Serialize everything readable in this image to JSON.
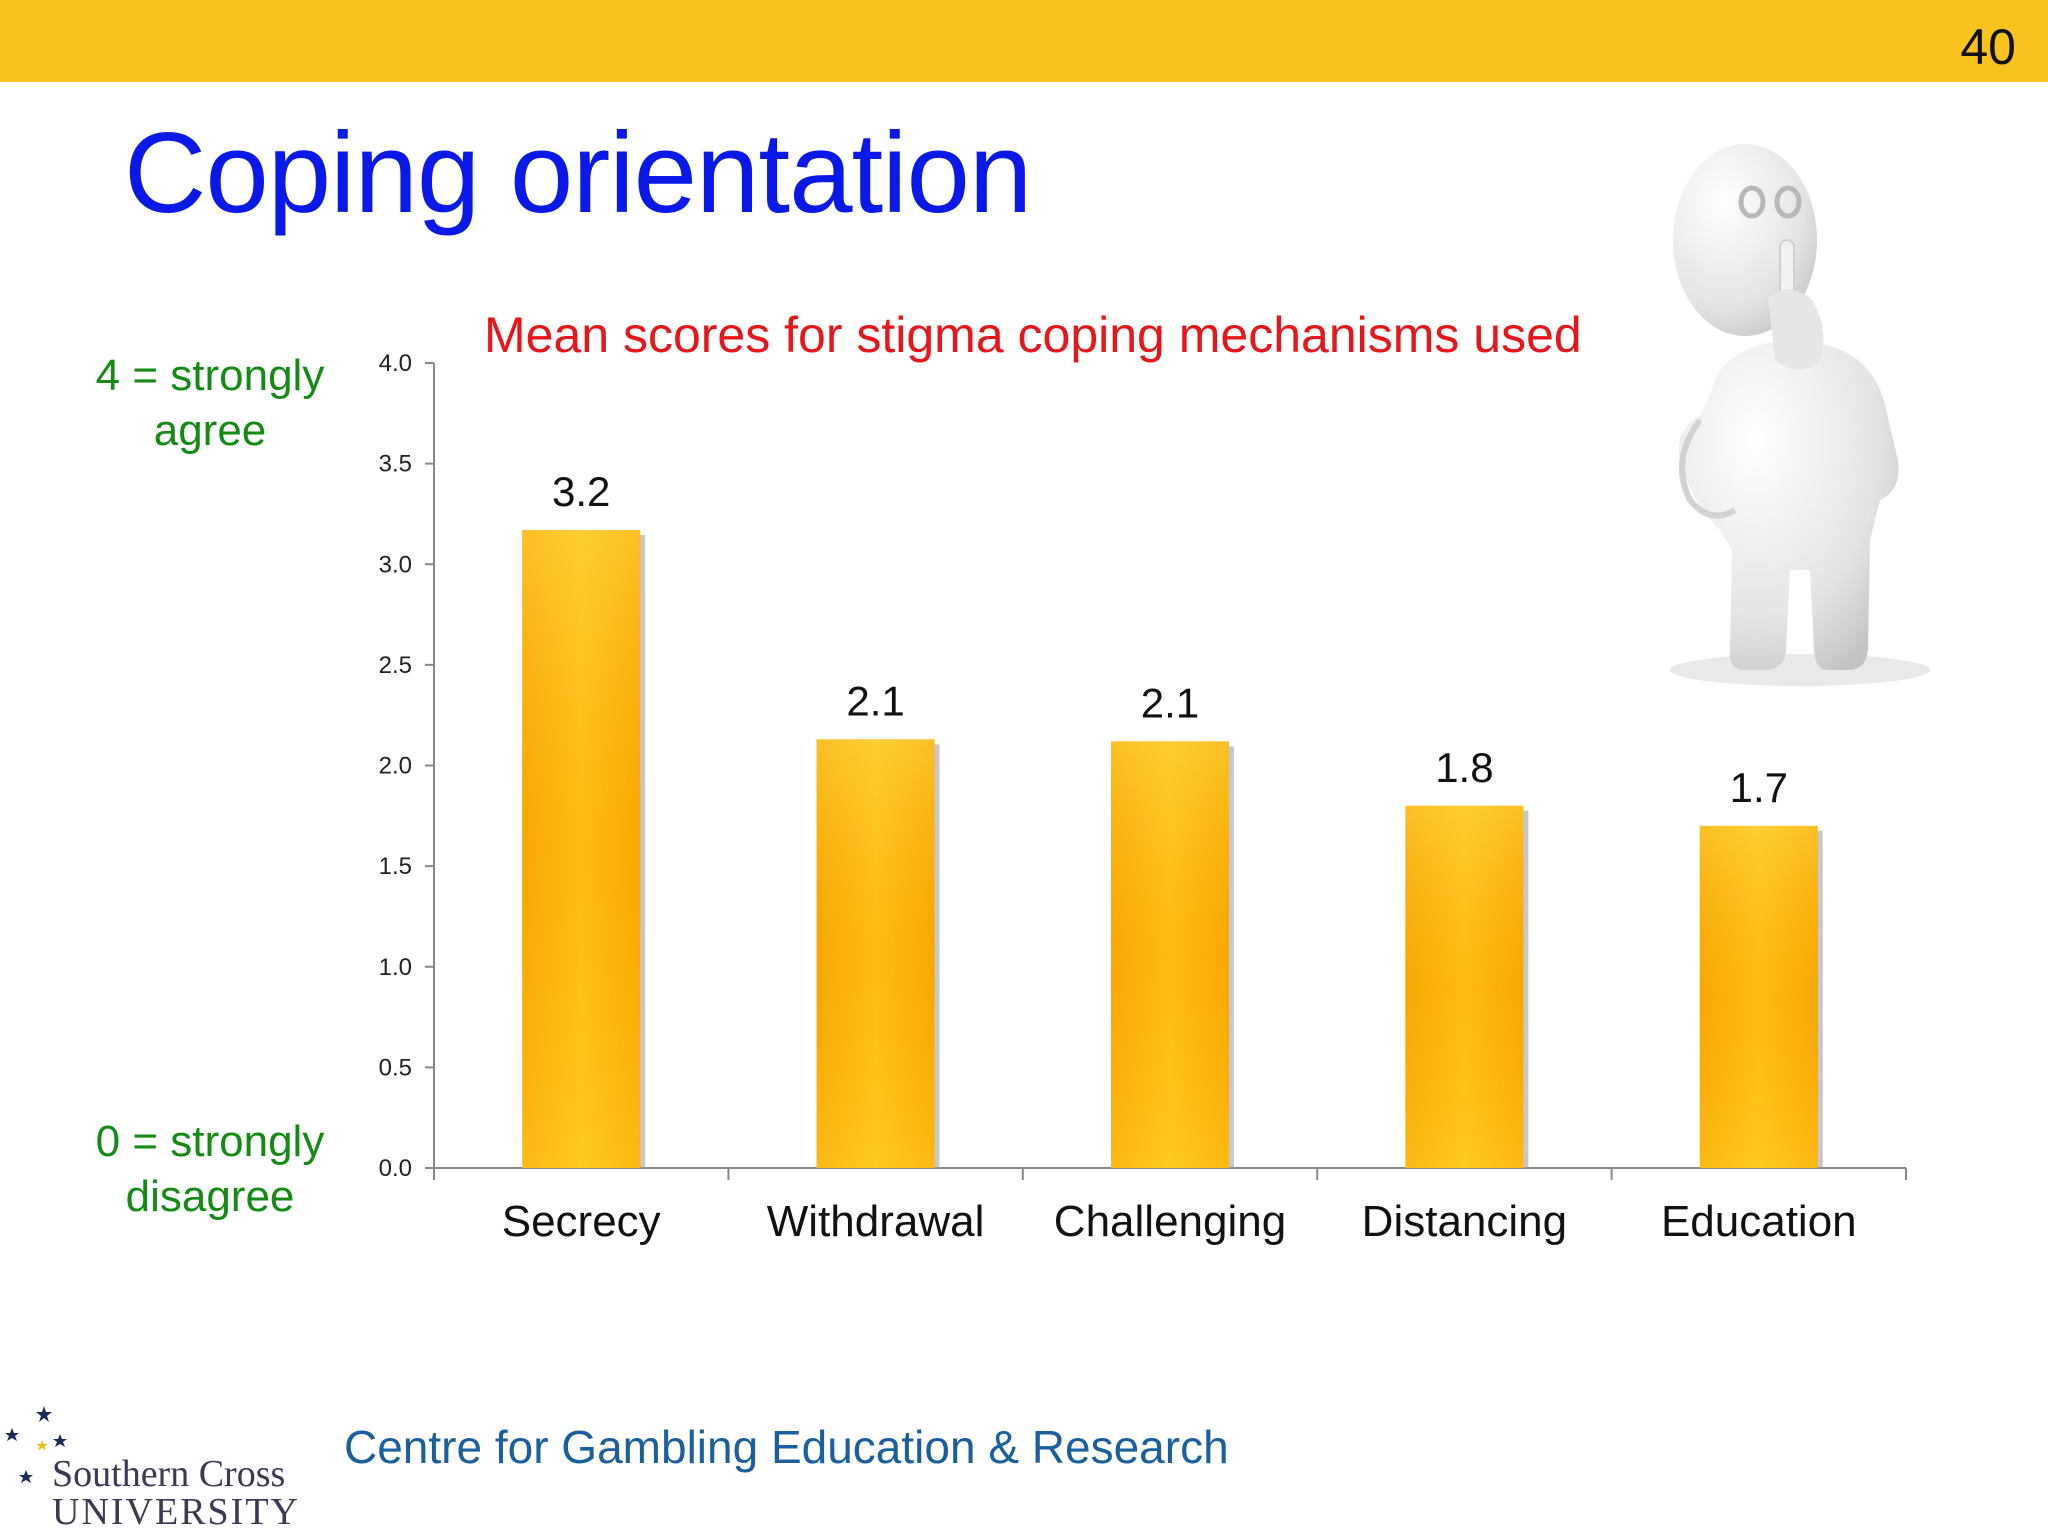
{
  "slide": {
    "page_number": "40",
    "title": "Coping orientation",
    "scale_top": "4 = strongly agree",
    "scale_bottom": "0 = strongly disagree",
    "footer": "Centre for Gambling Education & Research",
    "logo_line1": "Southern Cross",
    "logo_line2": "UNIVERSITY",
    "colors": {
      "banner": "#f9c31f",
      "title": "#0a18e8",
      "chart_title": "#e8161a",
      "scale_note": "#168a16",
      "footer": "#1c5f9e",
      "bar": "#fdb913"
    },
    "icons": [
      "thinking-figure-icon",
      "university-stars-icon"
    ]
  },
  "chart_data": {
    "type": "bar",
    "title": "Mean scores for stigma coping mechanisms used",
    "categories": [
      "Secrecy",
      "Withdrawal",
      "Challenging",
      "Distancing",
      "Education"
    ],
    "values": [
      3.2,
      2.1,
      2.1,
      1.8,
      1.7
    ],
    "data_labels": [
      "3.2",
      "2.1",
      "2.1",
      "1.8",
      "1.7"
    ],
    "bar_tops": [
      3.17,
      2.13,
      2.12,
      1.8,
      1.7
    ],
    "ylim": [
      0,
      4
    ],
    "yticks": [
      "0.0",
      "0.5",
      "1.0",
      "1.5",
      "2.0",
      "2.5",
      "3.0",
      "3.5",
      "4.0"
    ],
    "grid": false,
    "legend": "none"
  }
}
